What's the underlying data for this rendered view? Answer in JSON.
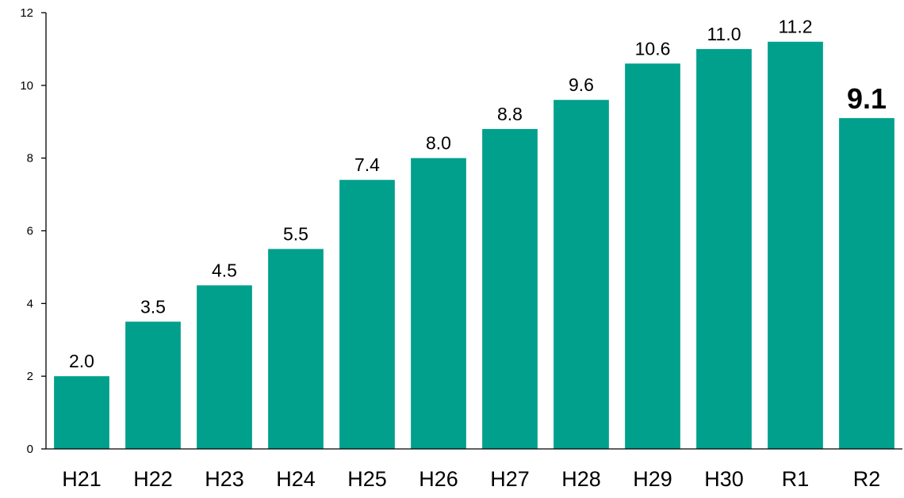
{
  "chart_data": {
    "type": "bar",
    "title": "",
    "xlabel": "",
    "ylabel": "",
    "categories": [
      "H21",
      "H22",
      "H23",
      "H24",
      "H25",
      "H26",
      "H27",
      "H28",
      "H29",
      "H30",
      "R1",
      "R2"
    ],
    "values": [
      2.0,
      3.5,
      4.5,
      5.5,
      7.4,
      8.0,
      8.8,
      9.6,
      10.6,
      11.0,
      11.2,
      9.1
    ],
    "data_labels": [
      "2.0",
      "3.5",
      "4.5",
      "5.5",
      "7.4",
      "8.0",
      "8.8",
      "9.6",
      "10.6",
      "11.0",
      "11.2",
      "9.1"
    ],
    "emphasized_category": "R2",
    "ylim": [
      0,
      12
    ],
    "yticks": [
      0,
      2,
      4,
      6,
      8,
      10,
      12
    ],
    "grid": false,
    "legend": "none",
    "bar_color": "#00A08C"
  }
}
